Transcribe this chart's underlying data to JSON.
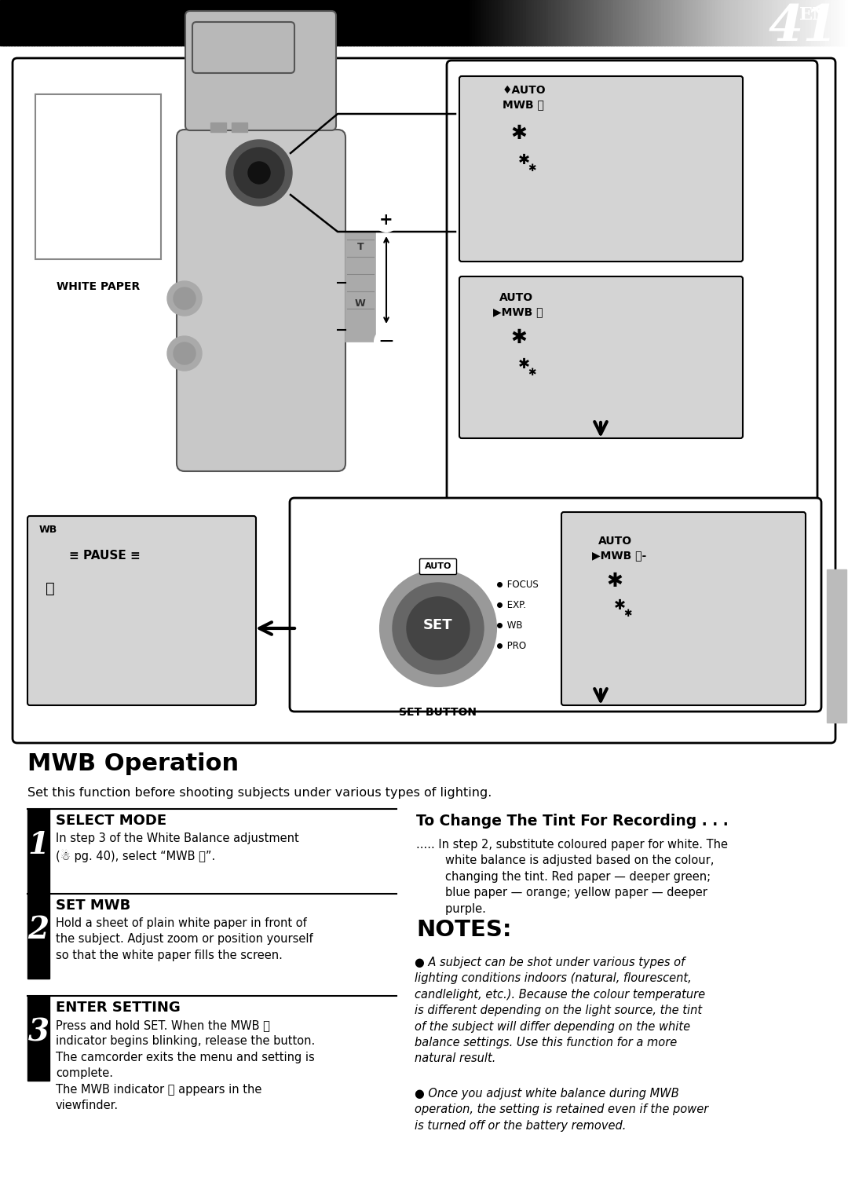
{
  "page_title": "EN 41",
  "bg_color": "#ffffff",
  "gray_box_bg": "#d4d4d4",
  "section_title": "MWB Operation",
  "section_subtitle": "Set this function before shooting subjects under various types of lighting.",
  "step1_title": "SELECT MODE",
  "step2_title": "SET MWB",
  "step3_title": "ENTER SETTING",
  "tint_title": "To Change The Tint For Recording . . .",
  "notes_title": "NOTES:",
  "note1": "A subject can be shot under various types of\nlighting conditions indoors (natural, flourescent,\ncandlelight, etc.). Because the colour temperature\nis different depending on the light source, the tint\nof the subject will differ depending on the white\nbalance settings. Use this function for a more\nnatural result.",
  "note2": "Once you adjust white balance during MWB\noperation, the setting is retained even if the power\nis turned off or the battery removed.",
  "white_paper_label": "WHITE PAPER",
  "set_button_label": "SET BUTTON",
  "auto_label": "AUTO",
  "focus_label": "FOCUS",
  "exp_label": "EXP.",
  "wb_btn_label": "WB",
  "pro_label": "PRO",
  "set_label": "SET"
}
